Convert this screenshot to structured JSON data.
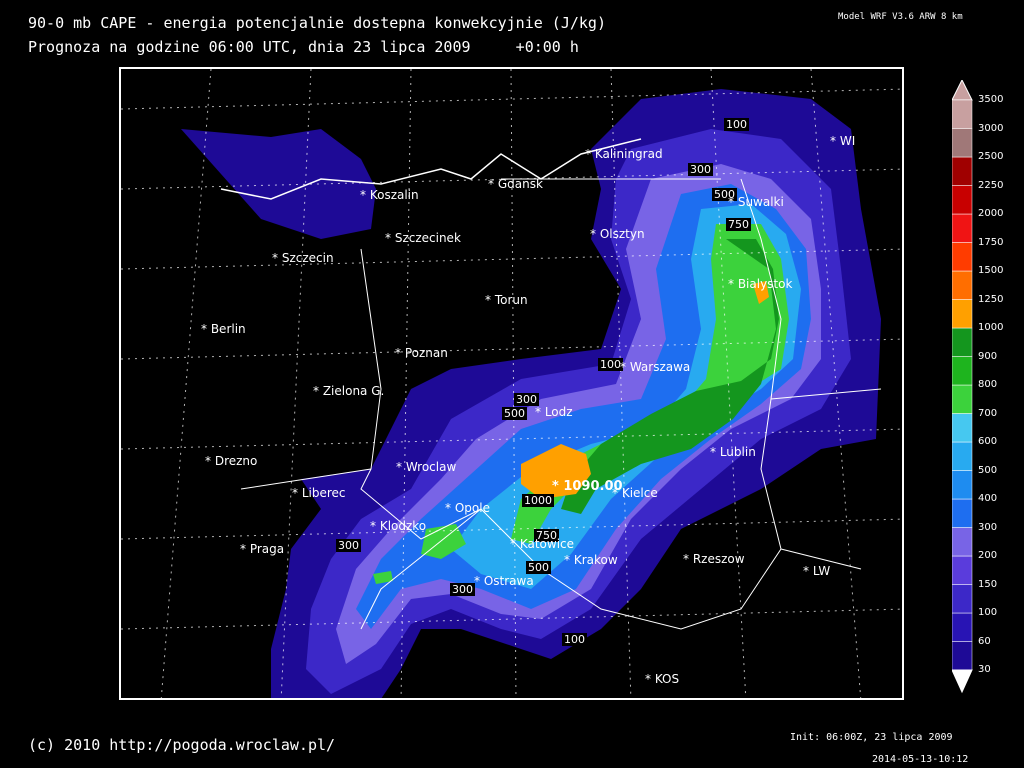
{
  "header": {
    "title_line1": "90-0 mb CAPE - energia potencjalnie dostepna konwekcyjnie (J/kg)",
    "title_line2": "Prognoza na godzine 06:00 UTC, dnia 23 lipca 2009     +0:00 h",
    "model": "Model WRF V3.6 ARW 8 km"
  },
  "footer": {
    "copyright": "(c) 2010 http://pogoda.wroclaw.pl/",
    "init": "Init: 06:00Z, 23 lipca 2009",
    "timestamp": "2014-05-13-10:12"
  },
  "map": {
    "max_label": "1090.00",
    "cities": [
      {
        "name": "Kaliningrad"
      },
      {
        "name": "Gdansk"
      },
      {
        "name": "Koszalin"
      },
      {
        "name": "Szczecinek"
      },
      {
        "name": "Szczecin"
      },
      {
        "name": "Olsztyn"
      },
      {
        "name": "Suwalki"
      },
      {
        "name": "Bialystok"
      },
      {
        "name": "Torun"
      },
      {
        "name": "Berlin"
      },
      {
        "name": "Poznan"
      },
      {
        "name": "Warszawa"
      },
      {
        "name": "Zielona G."
      },
      {
        "name": "Lodz"
      },
      {
        "name": "Drezno"
      },
      {
        "name": "Wroclaw"
      },
      {
        "name": "Lublin"
      },
      {
        "name": "Liberec"
      },
      {
        "name": "Opole"
      },
      {
        "name": "Kielce"
      },
      {
        "name": "Klodzko"
      },
      {
        "name": "Katowice"
      },
      {
        "name": "Praga"
      },
      {
        "name": "Krakow"
      },
      {
        "name": "Rzeszow"
      },
      {
        "name": "LW"
      },
      {
        "name": "Ostrawa"
      },
      {
        "name": "KOS"
      },
      {
        "name": "WI"
      }
    ],
    "contour_labels": [
      "100",
      "300",
      "500",
      "750",
      "100",
      "300",
      "500",
      "1000",
      "750",
      "300",
      "500",
      "300",
      "100"
    ]
  },
  "legend": {
    "levels": [
      "30",
      "60",
      "100",
      "150",
      "200",
      "300",
      "400",
      "500",
      "600",
      "700",
      "800",
      "900",
      "1000",
      "1250",
      "1500",
      "1750",
      "2000",
      "2250",
      "2500",
      "3000",
      "3500"
    ],
    "colors": [
      "#1e0a96",
      "#2814b4",
      "#3c28c8",
      "#5a3cdc",
      "#7864e6",
      "#1e6ef0",
      "#1e8cf0",
      "#28aaf0",
      "#46c8f0",
      "#3cd23c",
      "#1eb41e",
      "#14961e",
      "#ffa000",
      "#ff6e00",
      "#ff3c00",
      "#f01414",
      "#c80000",
      "#a00000",
      "#a07878",
      "#c8a0a0"
    ]
  }
}
